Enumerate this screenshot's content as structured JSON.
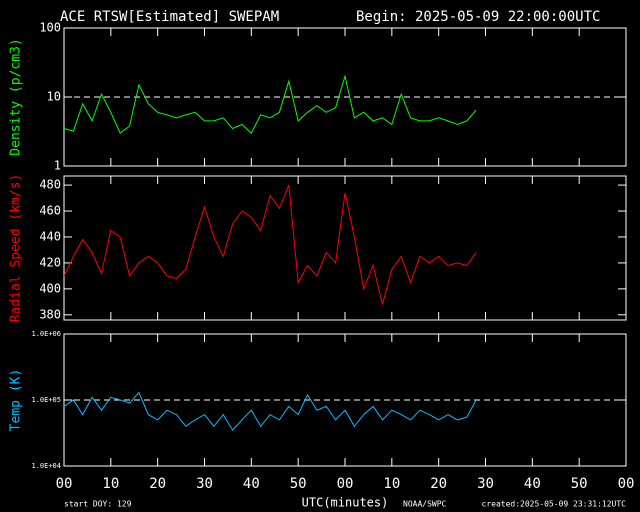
{
  "header": {
    "title": "ACE RTSW[Estimated] SWEPAM",
    "begin": "Begin: 2025-05-09 22:00:00UTC"
  },
  "chart_data": [
    {
      "type": "line",
      "ylabel": "Density (p/cm3)",
      "color": "#00ff00",
      "log_scale": true,
      "ylim": [
        1,
        100
      ],
      "yticks": [
        1,
        10,
        100
      ],
      "reference_line": 10,
      "xlim": [
        0,
        120
      ],
      "x": [
        0,
        2,
        4,
        6,
        8,
        10,
        12,
        14,
        16,
        18,
        20,
        22,
        24,
        26,
        28,
        30,
        32,
        34,
        36,
        38,
        40,
        42,
        44,
        46,
        48,
        50,
        52,
        54,
        56,
        58,
        60,
        62,
        64,
        66,
        68,
        70,
        72,
        74,
        76,
        78,
        80,
        82,
        84,
        86,
        88
      ],
      "values": [
        3.5,
        3.2,
        8,
        4.5,
        11,
        6,
        3,
        3.8,
        15,
        8,
        6,
        5.5,
        5,
        5.5,
        6,
        4.5,
        4.5,
        5,
        3.5,
        4,
        3,
        5.5,
        5,
        6,
        17,
        4.5,
        6,
        7.5,
        6,
        7,
        20,
        5,
        6,
        4.5,
        5,
        4,
        11,
        5,
        4.5,
        4.5,
        5,
        4.5,
        4,
        4.5,
        6.5
      ]
    },
    {
      "type": "line",
      "ylabel": "Radial Speed (km/s)",
      "color": "#ff0000",
      "log_scale": false,
      "ylim": [
        376,
        487
      ],
      "yticks": [
        380,
        400,
        420,
        440,
        460,
        480
      ],
      "xlim": [
        0,
        120
      ],
      "x": [
        0,
        2,
        4,
        6,
        8,
        10,
        12,
        14,
        16,
        18,
        20,
        22,
        24,
        26,
        28,
        30,
        32,
        34,
        36,
        38,
        40,
        42,
        44,
        46,
        48,
        50,
        52,
        54,
        56,
        58,
        60,
        62,
        64,
        66,
        68,
        70,
        72,
        74,
        76,
        78,
        80,
        82,
        84,
        86,
        88
      ],
      "values": [
        410,
        425,
        438,
        428,
        412,
        445,
        440,
        410,
        420,
        425,
        420,
        410,
        408,
        415,
        440,
        463,
        440,
        425,
        450,
        460,
        455,
        445,
        472,
        462,
        480,
        405,
        418,
        410,
        428,
        420,
        474,
        440,
        400,
        418,
        388,
        415,
        425,
        405,
        425,
        420,
        425,
        418,
        420,
        418,
        428
      ]
    },
    {
      "type": "line",
      "ylabel": "Temp (K)",
      "color": "#00bfff",
      "log_scale": true,
      "ylim": [
        10000,
        1000000
      ],
      "yticks": [
        {
          "value": 10000,
          "label": "1.0E+04"
        },
        {
          "value": 100000,
          "label": "1.0E+05"
        },
        {
          "value": 1000000,
          "label": "1.0E+06"
        }
      ],
      "reference_line": 100000,
      "xlabel": "UTC(minutes)",
      "xlim": [
        0,
        120
      ],
      "xticks": [
        {
          "value": 0,
          "label": "00"
        },
        10,
        20,
        30,
        40,
        50,
        {
          "value": 60,
          "label": "00"
        },
        {
          "value": 70,
          "label": "10"
        },
        {
          "value": 80,
          "label": "20"
        },
        {
          "value": 90,
          "label": "30"
        },
        {
          "value": 100,
          "label": "40"
        },
        {
          "value": 110,
          "label": "50"
        },
        {
          "value": 120,
          "label": "00"
        }
      ],
      "x": [
        0,
        2,
        4,
        6,
        8,
        10,
        12,
        14,
        16,
        18,
        20,
        22,
        24,
        26,
        28,
        30,
        32,
        34,
        36,
        38,
        40,
        42,
        44,
        46,
        48,
        50,
        52,
        54,
        56,
        58,
        60,
        62,
        64,
        66,
        68,
        70,
        72,
        74,
        76,
        78,
        80,
        82,
        84,
        86,
        88
      ],
      "values": [
        80000,
        100000,
        60000,
        110000,
        70000,
        110000,
        100000,
        90000,
        130000,
        60000,
        50000,
        70000,
        60000,
        40000,
        50000,
        60000,
        40000,
        60000,
        35000,
        50000,
        70000,
        40000,
        60000,
        50000,
        80000,
        60000,
        120000,
        70000,
        80000,
        50000,
        70000,
        40000,
        60000,
        80000,
        50000,
        70000,
        60000,
        50000,
        70000,
        60000,
        50000,
        60000,
        50000,
        55000,
        100000
      ]
    }
  ],
  "footer": {
    "start": "start DOY: 129",
    "credit": "NOAA/SWPC",
    "created": "created:2025-05-09 23:31:12UTC"
  }
}
